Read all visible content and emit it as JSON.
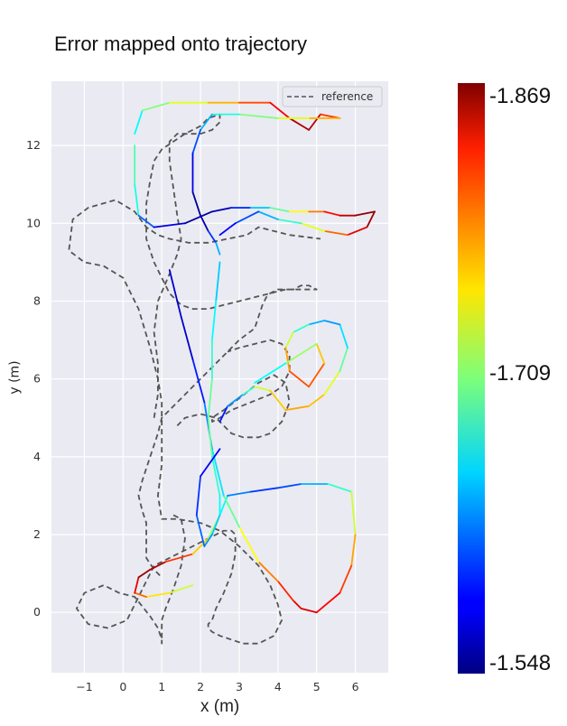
{
  "chart_data": {
    "type": "line",
    "title": "Error mapped onto trajectory",
    "xlabel": "x (m)",
    "ylabel": "y (m)",
    "xlim": [
      -1.85,
      6.85
    ],
    "ylim": [
      -1.55,
      13.65
    ],
    "xticks": [
      "−1",
      "0",
      "1",
      "2",
      "3",
      "4",
      "5",
      "6"
    ],
    "xtick_values": [
      -1,
      0,
      1,
      2,
      3,
      4,
      5,
      6
    ],
    "yticks": [
      "0",
      "2",
      "4",
      "6",
      "8",
      "10",
      "12"
    ],
    "ytick_values": [
      0,
      2,
      4,
      6,
      8,
      10,
      12
    ],
    "grid": true,
    "legend": {
      "position": "top-right",
      "entries": [
        "reference"
      ]
    },
    "colorbar": {
      "colormap": "jet",
      "labels": [
        "-1.869",
        "-1.709",
        "-1.548"
      ],
      "max": -1.548,
      "min": -1.869,
      "mid": -1.709
    },
    "series": [
      {
        "name": "reference",
        "style": "dashed",
        "color": "#555555",
        "x": [
          1.3,
          1.5,
          1.6,
          1.5,
          1.3,
          1.1,
          1.0,
          1.0,
          1.0,
          1.0,
          1.0,
          1.0,
          0.9,
          0.7,
          0.3,
          -0.1,
          -0.5,
          -1.0,
          -1.2,
          -0.9,
          -0.4,
          0.1,
          0.4,
          0.8,
          1.6,
          2.2,
          2.6,
          2.8,
          2.9,
          2.9,
          2.8,
          2.6,
          2.4,
          2.3,
          2.2,
          2.2,
          2.3,
          2.5,
          2.8,
          3.1,
          3.5,
          3.9,
          4.1,
          4.0,
          3.8,
          3.5,
          3.0,
          2.5,
          2.0,
          1.4,
          1.0,
          0.9,
          1.0,
          1.0,
          1.0,
          0.9,
          0.7,
          0.4,
          0.0,
          -0.5,
          -1.0,
          -1.4,
          -1.3,
          -0.9,
          -0.2,
          0.3,
          0.6,
          0.9,
          1.2,
          1.7,
          2.2,
          2.7,
          3.2,
          3.5,
          4.3,
          5.1
        ],
        "y": [
          2.5,
          2.4,
          1.9,
          1.2,
          0.6,
          0.1,
          -0.2,
          -0.4,
          -0.5,
          -0.7,
          -0.8,
          -0.7,
          -0.4,
          -0.1,
          0.4,
          0.5,
          0.7,
          0.5,
          0.1,
          -0.3,
          -0.4,
          -0.2,
          0.4,
          1.2,
          1.6,
          1.9,
          2.1,
          2.1,
          2.0,
          1.5,
          1.0,
          0.5,
          0.1,
          -0.2,
          -0.3,
          -0.4,
          -0.5,
          -0.6,
          -0.7,
          -0.8,
          -0.8,
          -0.6,
          -0.2,
          0.2,
          0.7,
          1.2,
          1.7,
          2.1,
          2.3,
          2.4,
          2.4,
          3.0,
          3.8,
          4.6,
          5.4,
          6.0,
          6.8,
          7.8,
          8.6,
          8.9,
          9.0,
          9.3,
          10.1,
          10.4,
          10.6,
          10.3,
          9.9,
          9.7,
          9.6,
          9.5,
          9.5,
          9.6,
          9.7,
          9.9,
          9.7,
          9.6
        ]
      },
      {
        "name": "reference",
        "style": "dashed",
        "color": "#555555",
        "x": [
          0.8,
          0.9,
          0.9,
          0.8,
          0.9,
          1.2,
          1.4,
          1.5,
          1.4,
          1.3,
          1.2,
          1.2,
          1.2,
          1.3,
          1.4,
          1.7,
          2.0,
          2.3,
          2.5,
          2.5,
          2.2,
          2.0,
          1.6,
          1.3,
          1.0,
          0.8,
          0.7,
          0.6,
          0.6,
          0.6,
          0.7,
          0.8,
          1.0,
          1.2,
          1.5,
          1.8,
          2.2,
          2.6,
          3.0,
          3.4,
          3.8,
          4.2,
          4.4,
          4.6,
          4.8,
          5.0,
          4.8,
          4.4,
          4.0,
          3.8,
          3.7,
          3.6,
          3.5,
          3.4,
          3.0,
          2.6,
          2.2,
          1.8,
          1.4,
          1.0,
          0.9,
          0.7,
          0.5,
          0.4,
          0.5,
          0.6,
          0.6,
          0.6,
          0.6,
          0.8,
          1.0
        ],
        "y": [
          5.0,
          5.6,
          6.4,
          7.2,
          8.0,
          8.7,
          9.2,
          9.6,
          10.2,
          10.9,
          11.6,
          11.9,
          12.1,
          12.2,
          12.3,
          12.3,
          12.3,
          12.4,
          12.6,
          12.8,
          12.7,
          12.5,
          12.3,
          12.1,
          11.9,
          11.6,
          11.1,
          10.5,
          10.0,
          9.6,
          9.3,
          9.0,
          8.6,
          8.2,
          7.9,
          7.8,
          7.8,
          7.9,
          8.0,
          8.1,
          8.2,
          8.3,
          8.3,
          8.4,
          8.4,
          8.3,
          8.3,
          8.3,
          8.3,
          8.2,
          8.1,
          7.9,
          7.6,
          7.3,
          7.0,
          6.6,
          6.2,
          5.8,
          5.4,
          5.0,
          4.6,
          4.0,
          3.4,
          3.0,
          2.6,
          2.3,
          2.0,
          1.7,
          1.4,
          1.1,
          0.9
        ]
      },
      {
        "name": "reference",
        "style": "dashed",
        "color": "#555555",
        "x": [
          1.4,
          1.6,
          2.0,
          2.4,
          2.6,
          2.8,
          3.1,
          3.5,
          3.8,
          4.1,
          4.3,
          4.2,
          3.9,
          3.5,
          3.0,
          2.6,
          2.3,
          2.3,
          2.5,
          2.8,
          3.3,
          3.8,
          4.1,
          4.3,
          4.3,
          4.1,
          3.8,
          3.4,
          3.0,
          2.7
        ],
        "y": [
          4.8,
          5.0,
          5.1,
          5.0,
          4.8,
          4.6,
          4.5,
          4.5,
          4.6,
          4.9,
          5.4,
          5.9,
          6.1,
          5.9,
          5.5,
          5.2,
          5.0,
          4.9,
          5.0,
          5.2,
          5.4,
          5.6,
          5.8,
          6.2,
          6.6,
          6.9,
          7.0,
          6.9,
          6.8,
          6.7
        ]
      },
      {
        "name": "",
        "style": "colored",
        "colormap_values": [
          0.55,
          0.6,
          0.7,
          0.85,
          0.95,
          1.0,
          0.9,
          0.75,
          0.6,
          0.45,
          0.3,
          0.2,
          0.15,
          0.25,
          0.35,
          0.5,
          0.65,
          0.78,
          0.85,
          0.9,
          0.92,
          0.88,
          0.8,
          0.7,
          0.55,
          0.4,
          0.3,
          0.2,
          0.1,
          0.05,
          0.1
        ],
        "x": [
          1.8,
          1.2,
          0.6,
          0.3,
          0.4,
          0.7,
          1.1,
          1.8,
          2.2,
          2.5,
          2.7,
          3.3,
          4.0,
          4.6,
          5.3,
          5.9,
          6.0,
          5.9,
          5.6,
          5.0,
          4.6,
          4.4,
          4.0,
          3.5,
          3.0,
          2.6,
          2.3,
          2.1,
          1.8,
          1.5,
          1.2
        ],
        "y": [
          0.7,
          0.5,
          0.4,
          0.5,
          0.9,
          1.1,
          1.3,
          1.5,
          1.9,
          2.5,
          3.0,
          3.1,
          3.2,
          3.3,
          3.3,
          3.1,
          2.0,
          1.2,
          0.5,
          0.0,
          0.1,
          0.3,
          0.8,
          1.3,
          2.2,
          3.0,
          4.2,
          5.4,
          6.5,
          7.6,
          8.8
        ]
      },
      {
        "name": "",
        "style": "colored",
        "colormap_values": [
          0.1,
          0.2,
          0.35,
          0.5,
          0.65,
          0.7,
          0.72,
          0.65,
          0.55,
          0.4,
          0.3,
          0.25,
          0.35,
          0.5,
          0.65,
          0.78,
          0.82,
          0.76,
          0.6,
          0.45,
          0.3
        ],
        "x": [
          2.5,
          2.7,
          3.1,
          3.4,
          3.8,
          4.2,
          4.8,
          5.2,
          5.6,
          5.8,
          5.6,
          5.2,
          4.8,
          4.4,
          4.2,
          4.3,
          4.8,
          5.2,
          5.0,
          4.2,
          3.4
        ],
        "y": [
          4.9,
          5.3,
          5.6,
          5.8,
          5.7,
          5.2,
          5.3,
          5.6,
          6.2,
          6.8,
          7.4,
          7.5,
          7.4,
          7.2,
          6.8,
          6.2,
          5.8,
          6.4,
          6.9,
          6.4,
          5.9
        ]
      },
      {
        "name": "",
        "style": "colored",
        "colormap_values": [
          0.4,
          0.5,
          0.3,
          0.15,
          0.05,
          0.0,
          0.1,
          0.25,
          0.4,
          0.55,
          0.7,
          0.82,
          0.9,
          0.97,
          1.0,
          0.95,
          0.85,
          0.7,
          0.5,
          0.35,
          0.25,
          0.15,
          0.1
        ],
        "x": [
          0.3,
          0.3,
          0.4,
          0.8,
          1.6,
          2.3,
          2.8,
          3.3,
          3.8,
          4.3,
          4.8,
          5.2,
          5.6,
          6.0,
          6.5,
          6.3,
          5.8,
          5.2,
          4.6,
          4.0,
          3.5,
          2.9,
          2.5
        ],
        "y": [
          12.0,
          11.0,
          10.2,
          9.9,
          10.0,
          10.3,
          10.4,
          10.4,
          10.4,
          10.3,
          10.3,
          10.3,
          10.2,
          10.2,
          10.3,
          9.9,
          9.7,
          9.8,
          10.0,
          10.1,
          10.3,
          10.0,
          9.7
        ]
      },
      {
        "name": "",
        "style": "colored",
        "colormap_values": [
          0.3,
          0.45,
          0.55,
          0.65,
          0.75,
          0.85,
          0.92,
          1.0,
          0.9,
          0.75,
          0.65,
          0.55,
          0.45,
          0.35,
          0.25,
          0.15,
          0.05,
          0.0,
          0.1,
          0.25,
          0.35
        ],
        "x": [
          0.3,
          0.5,
          1.2,
          2.2,
          3.0,
          3.8,
          4.3,
          4.8,
          5.1,
          5.6,
          4.8,
          4.0,
          3.0,
          2.3,
          2.0,
          1.8,
          1.8,
          2.0,
          2.2,
          2.4,
          2.5
        ],
        "y": [
          12.3,
          12.9,
          13.1,
          13.1,
          13.1,
          13.1,
          12.7,
          12.4,
          12.8,
          12.7,
          12.7,
          12.7,
          12.8,
          12.8,
          12.4,
          11.8,
          10.8,
          10.2,
          9.8,
          9.5,
          9.2
        ]
      },
      {
        "name": "",
        "style": "colored",
        "colormap_values": [
          0.3,
          0.35,
          0.4,
          0.45,
          0.5,
          0.45,
          0.4,
          0.35,
          0.3,
          0.25,
          0.2,
          0.15,
          0.1
        ],
        "x": [
          2.5,
          2.4,
          2.3,
          2.3,
          2.2,
          2.3,
          2.5,
          2.5,
          2.3,
          2.1,
          1.9,
          2.0,
          2.5
        ],
        "y": [
          9.0,
          8.0,
          7.0,
          6.0,
          5.0,
          4.0,
          3.0,
          2.5,
          2.0,
          1.7,
          2.5,
          3.5,
          4.2
        ]
      }
    ]
  }
}
